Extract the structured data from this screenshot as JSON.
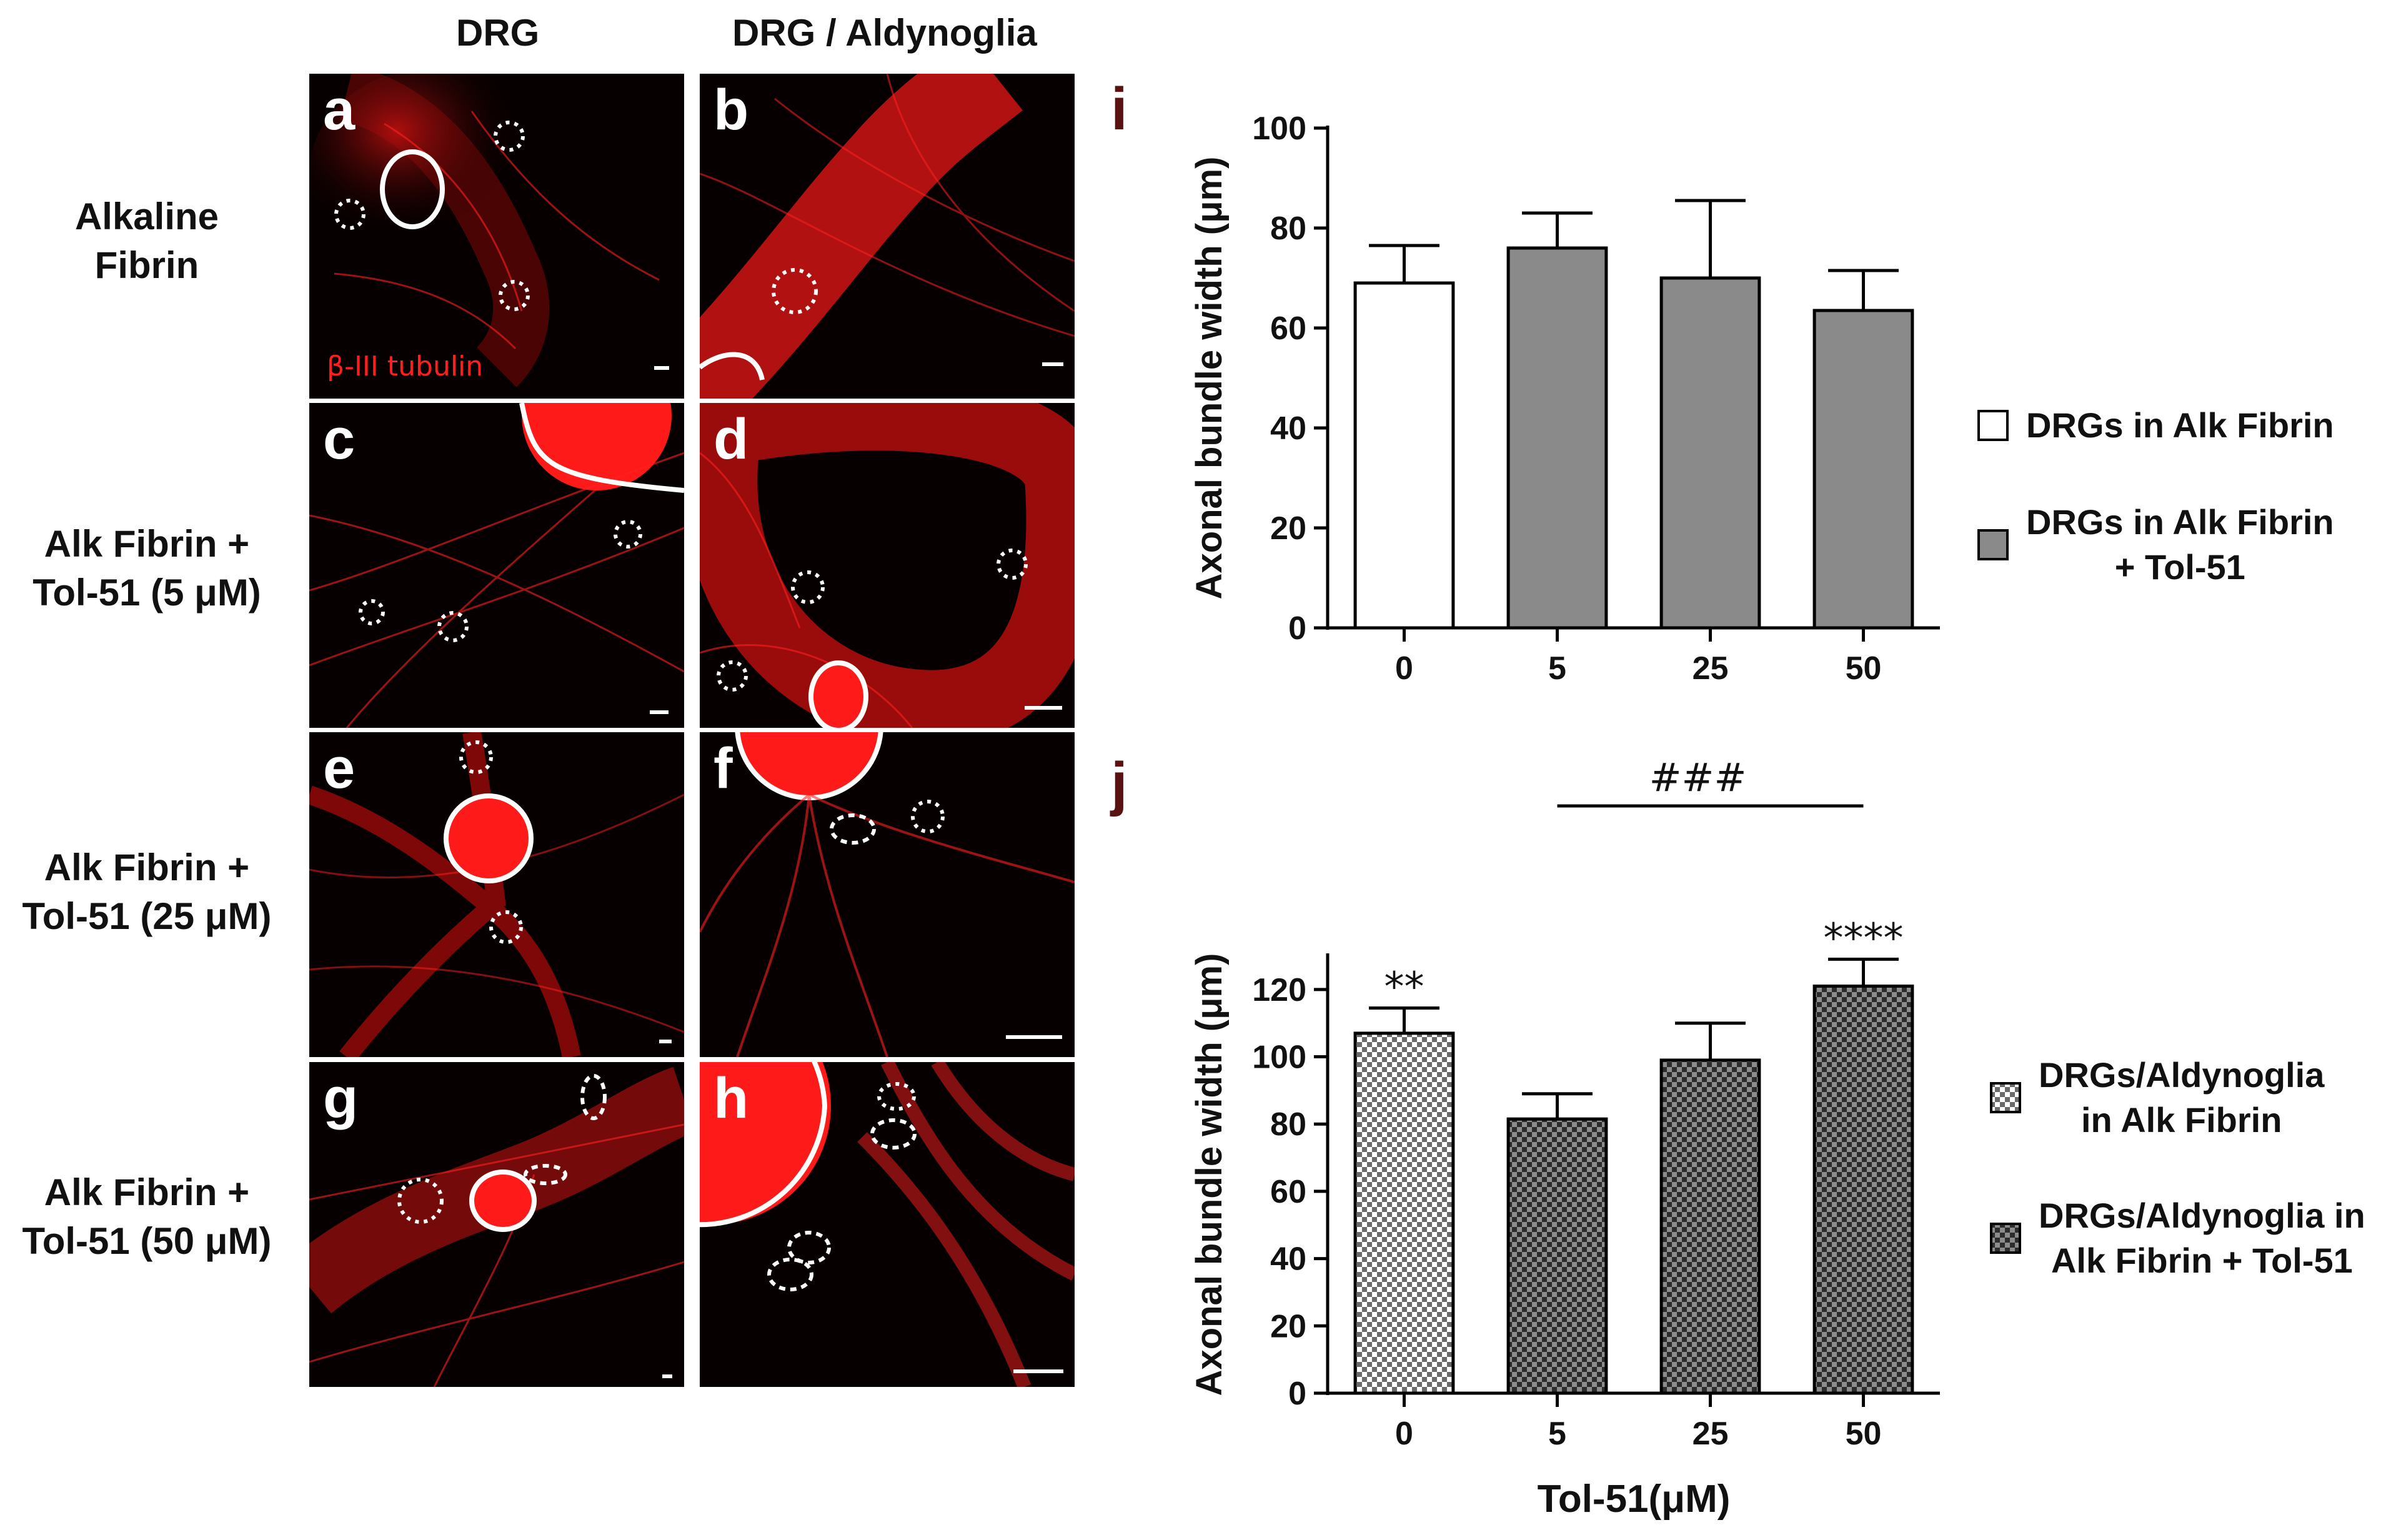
{
  "figure": {
    "columns": [
      "DRG",
      "DRG / Aldynoglia"
    ],
    "rows": [
      {
        "label_lines": [
          "Alkaline",
          "Fibrin"
        ]
      },
      {
        "label_lines": [
          "Alk Fibrin  +",
          "Tol-51 (5 μM)"
        ]
      },
      {
        "label_lines": [
          "Alk Fibrin  +",
          "Tol-51 (25 μM)"
        ]
      },
      {
        "label_lines": [
          "Alk Fibrin  +",
          "Tol-51 (50 μM)"
        ]
      }
    ],
    "panels": [
      "a",
      "b",
      "c",
      "d",
      "e",
      "f",
      "g",
      "h"
    ],
    "stain_label": "β-III tubulin",
    "colors": {
      "stain": "#ff1e1e",
      "background": "#070000"
    }
  },
  "chart_data": [
    {
      "panel": "i",
      "type": "bar",
      "categories": [
        "0",
        "5",
        "25",
        "50"
      ],
      "values": [
        69,
        76,
        70,
        63.5
      ],
      "errors": [
        7.5,
        7,
        15.5,
        8
      ],
      "ylabel": "Axonal bundle width (μm)",
      "xlabel": "",
      "ylim": [
        0,
        100
      ],
      "yticks": [
        0,
        20,
        40,
        60,
        80,
        100
      ],
      "bar_fills": [
        "white",
        "gray",
        "gray",
        "gray"
      ],
      "colors": {
        "white": "#ffffff",
        "gray": "#8a8a8a"
      },
      "legend": [
        {
          "fill": "white",
          "lines": [
            "DRGs in Alk Fibrin"
          ]
        },
        {
          "fill": "gray",
          "lines": [
            "DRGs in Alk Fibrin",
            "+ Tol-51"
          ]
        }
      ],
      "annotations": []
    },
    {
      "panel": "j",
      "type": "bar",
      "categories": [
        "0",
        "5",
        "25",
        "50"
      ],
      "values": [
        107,
        81.5,
        99,
        121
      ],
      "errors": [
        7.5,
        7.5,
        11,
        8
      ],
      "ylabel": "Axonal bundle width (μm)",
      "xlabel": "Tol-51(μM)",
      "ylim": [
        0,
        130
      ],
      "yticks": [
        0,
        20,
        40,
        60,
        80,
        100,
        120
      ],
      "bar_fills": [
        "checker-light",
        "checker-dark",
        "checker-dark",
        "checker-dark"
      ],
      "legend": [
        {
          "fill": "checker-light",
          "lines": [
            "DRGs/Aldynoglia",
            "in Alk Fibrin"
          ]
        },
        {
          "fill": "checker-dark",
          "lines": [
            "DRGs/Aldynoglia in",
            "Alk Fibrin + Tol-51"
          ]
        }
      ],
      "annotations": [
        {
          "text": "**",
          "category": "0"
        },
        {
          "text": "****",
          "category": "50"
        },
        {
          "text": "###",
          "from": "5",
          "to": "50"
        }
      ]
    }
  ]
}
